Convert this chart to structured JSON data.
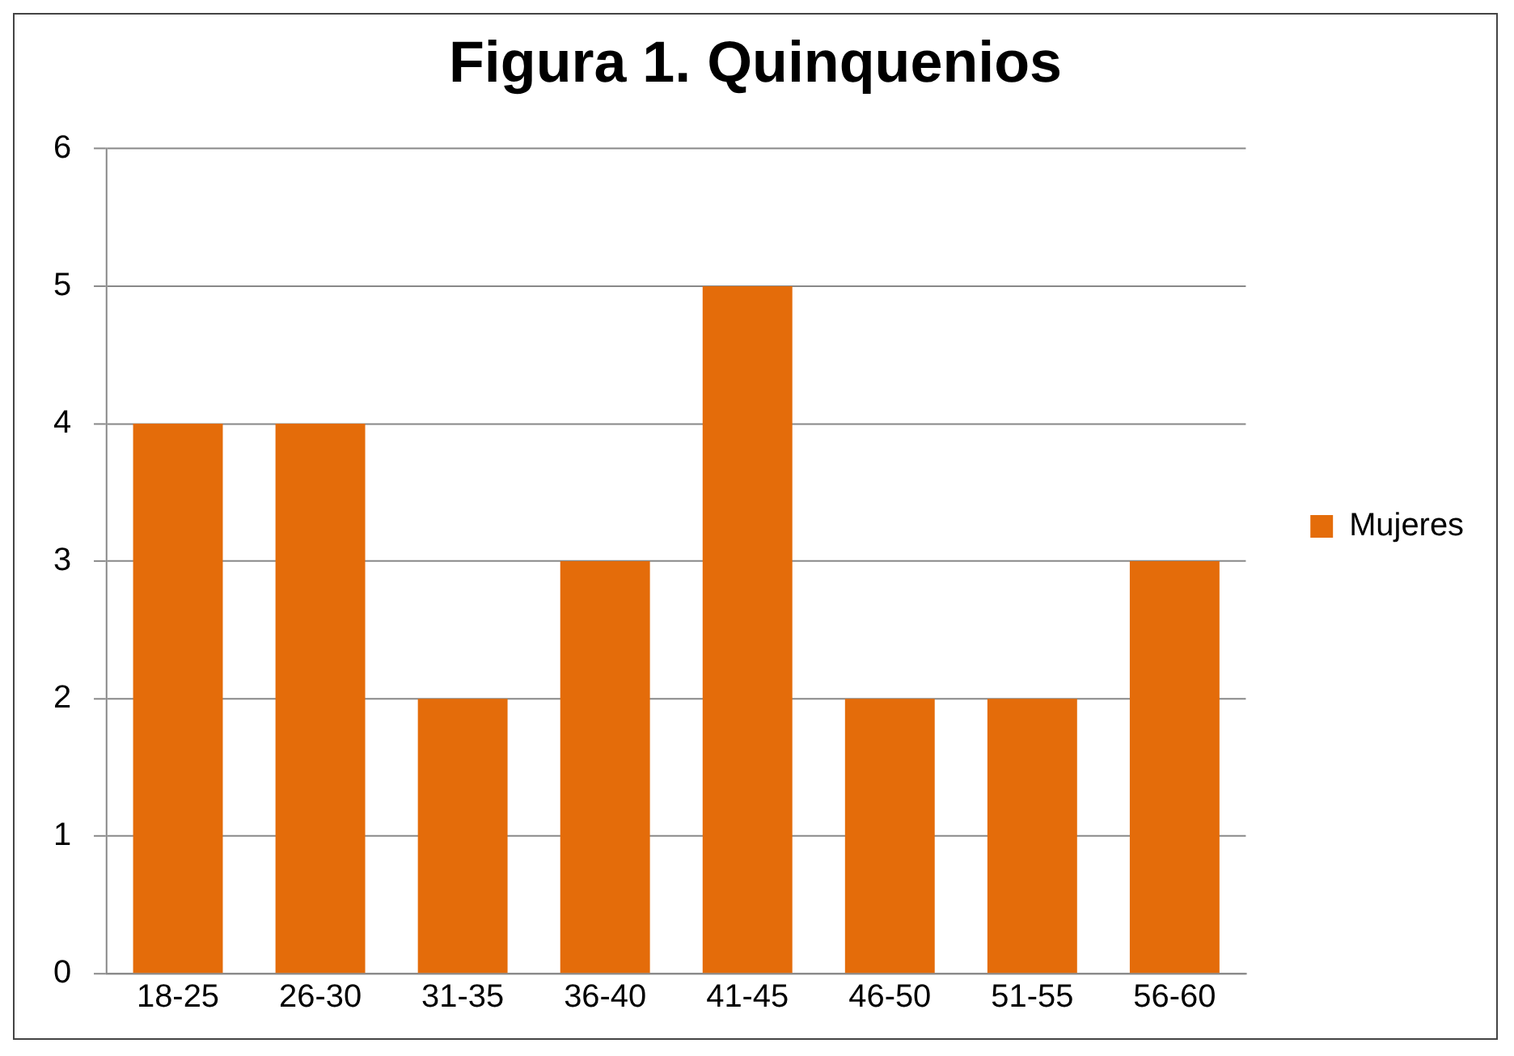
{
  "chart_data": {
    "type": "bar",
    "title": "Figura 1. Quinquenios",
    "categories": [
      "18-25",
      "26-30",
      "31-35",
      "36-40",
      "41-45",
      "46-50",
      "51-55",
      "56-60"
    ],
    "series": [
      {
        "name": "Mujeres",
        "color": "#e46c0a",
        "values": [
          4,
          4,
          2,
          3,
          5,
          2,
          2,
          3
        ]
      }
    ],
    "ylim": [
      0,
      6
    ],
    "yticks": [
      0,
      1,
      2,
      3,
      4,
      5,
      6
    ],
    "grid": "y",
    "legend": "right"
  }
}
